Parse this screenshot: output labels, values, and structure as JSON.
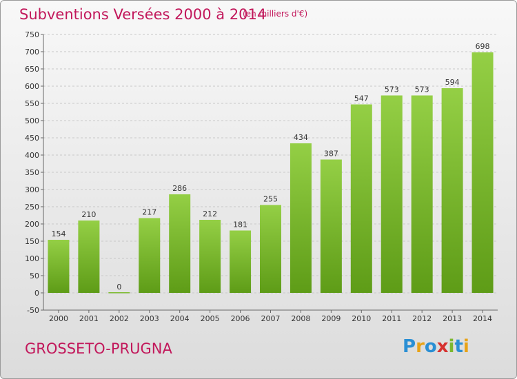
{
  "title": "Subventions Versées 2000 à 2014",
  "subtitle": "(en milliers d'€)",
  "place": "GROSSETO-PRUGNA",
  "logo": {
    "letters": [
      "P",
      "r",
      "o",
      "x",
      "i",
      "t",
      "i"
    ],
    "colors": [
      "#2a8fd4",
      "#e8a317",
      "#2a8fd4",
      "#d6312f",
      "#7cb82f",
      "#2a8fd4",
      "#e8a317"
    ]
  },
  "chart_data": {
    "type": "bar",
    "categories": [
      "2000",
      "2001",
      "2002",
      "2003",
      "2004",
      "2005",
      "2006",
      "2007",
      "2008",
      "2009",
      "2010",
      "2011",
      "2012",
      "2013",
      "2014"
    ],
    "values": [
      154,
      210,
      0,
      217,
      286,
      212,
      181,
      255,
      434,
      387,
      547,
      573,
      573,
      594,
      698
    ],
    "title": "Subventions Versées 2000 à 2014",
    "subtitle": "(en milliers d'€)",
    "ylim": [
      -50,
      750
    ],
    "yticks": [
      -50,
      0,
      50,
      100,
      150,
      200,
      250,
      300,
      350,
      400,
      450,
      500,
      550,
      600,
      650,
      700,
      750
    ],
    "grid": true,
    "bar_color": "#7cbd2e"
  }
}
